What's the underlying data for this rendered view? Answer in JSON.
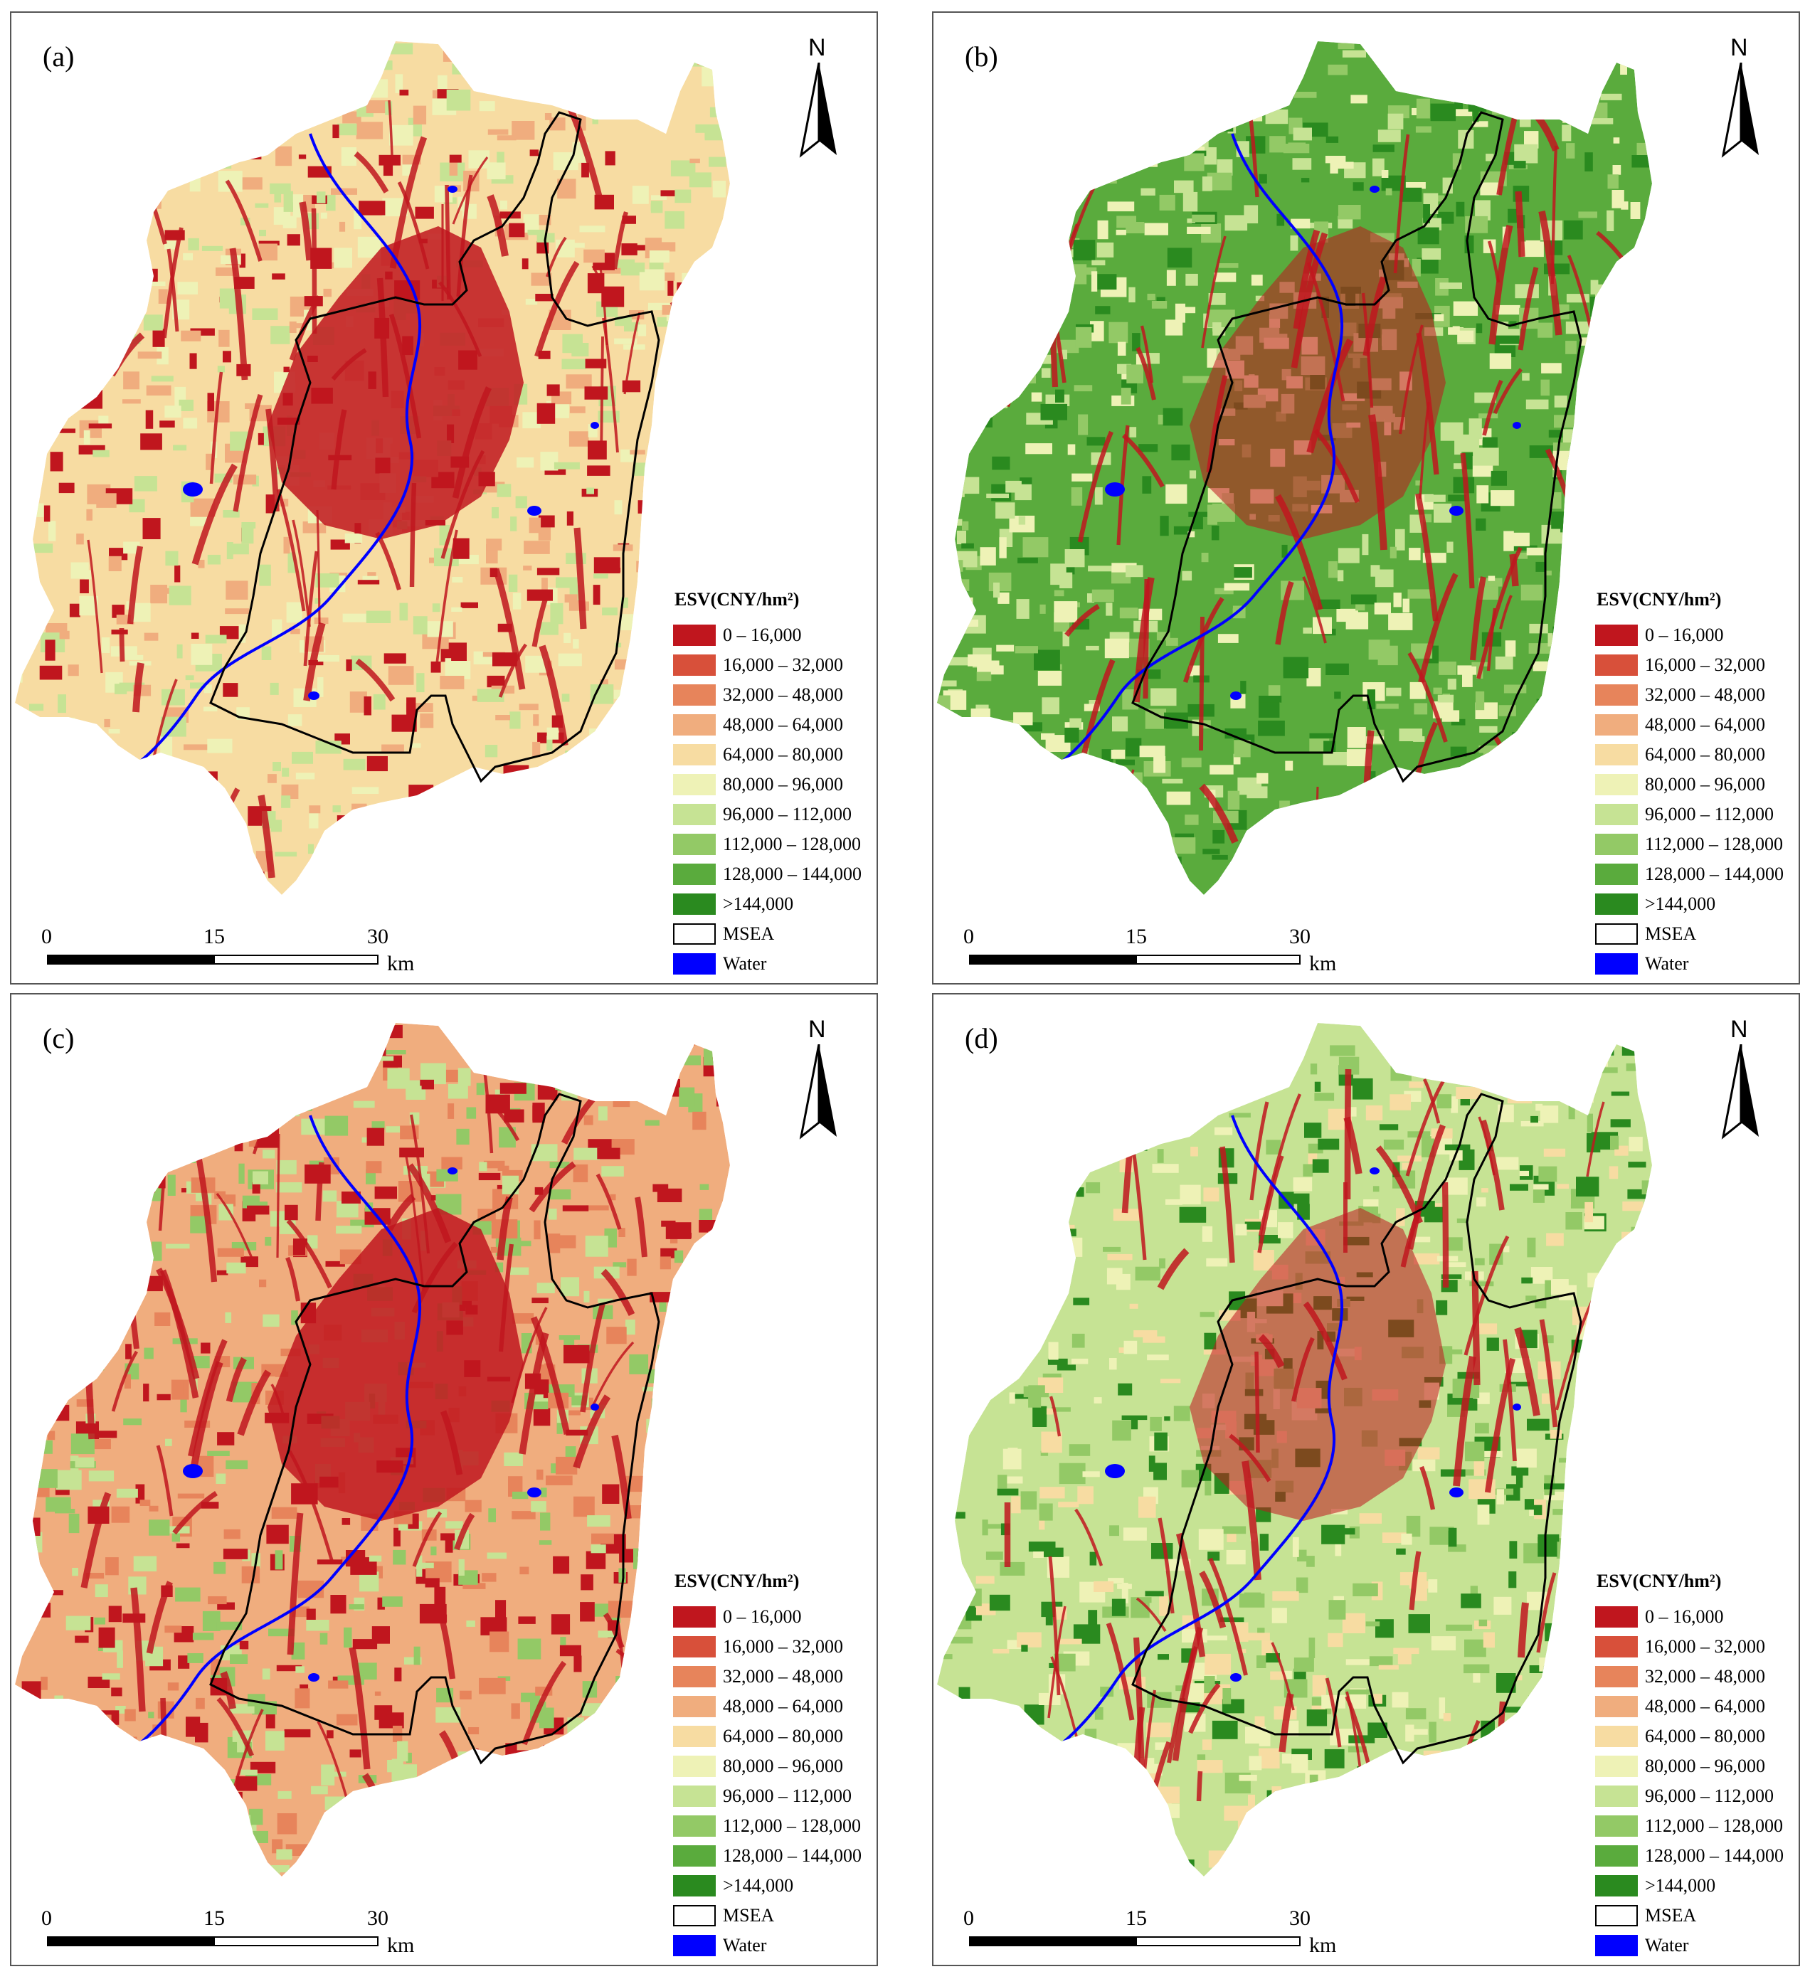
{
  "legend": {
    "title": "ESV(CNY/hm²)",
    "classes": [
      {
        "label": "0 – 16,000",
        "color": "#c0161e"
      },
      {
        "label": "16,000 – 32,000",
        "color": "#d8503a"
      },
      {
        "label": "32,000 – 48,000",
        "color": "#e7845b"
      },
      {
        "label": "48,000 – 64,000",
        "color": "#f0ad7e"
      },
      {
        "label": "64,000 – 80,000",
        "color": "#f7dca2"
      },
      {
        "label": "80,000 – 96,000",
        "color": "#eef2b6"
      },
      {
        "label": "96,000 – 112,000",
        "color": "#c6e394"
      },
      {
        "label": "112,000 – 128,000",
        "color": "#93c966"
      },
      {
        "label": "128,000 – 144,000",
        "color": "#5aab3d"
      },
      {
        "label": ">144,000",
        "color": "#2a8a1f"
      }
    ],
    "msea_label": "MSEA",
    "water_label": "Water",
    "water_color": "#0000ff"
  },
  "scale": {
    "ticks": [
      "0",
      "15",
      "30"
    ],
    "unit": "km"
  },
  "north_label": "N",
  "panels": [
    {
      "label": "(a)",
      "base_color": "#f7dca2",
      "patch_colors": [
        "#f0ad7e",
        "#eef2b6",
        "#c6e394",
        "#c0161e"
      ],
      "core_color": "#c0161e"
    },
    {
      "label": "(b)",
      "base_color": "#5aab3d",
      "patch_colors": [
        "#2a8a1f",
        "#93c966",
        "#c6e394",
        "#eef2b6"
      ],
      "core_color": "#c0161e"
    },
    {
      "label": "(c)",
      "base_color": "#f0ad7e",
      "patch_colors": [
        "#e7845b",
        "#c6e394",
        "#93c966",
        "#c0161e"
      ],
      "core_color": "#c0161e"
    },
    {
      "label": "(d)",
      "base_color": "#c6e394",
      "patch_colors": [
        "#2a8a1f",
        "#eef2b6",
        "#93c966",
        "#f7dca2"
      ],
      "core_color": "#c0161e"
    }
  ]
}
